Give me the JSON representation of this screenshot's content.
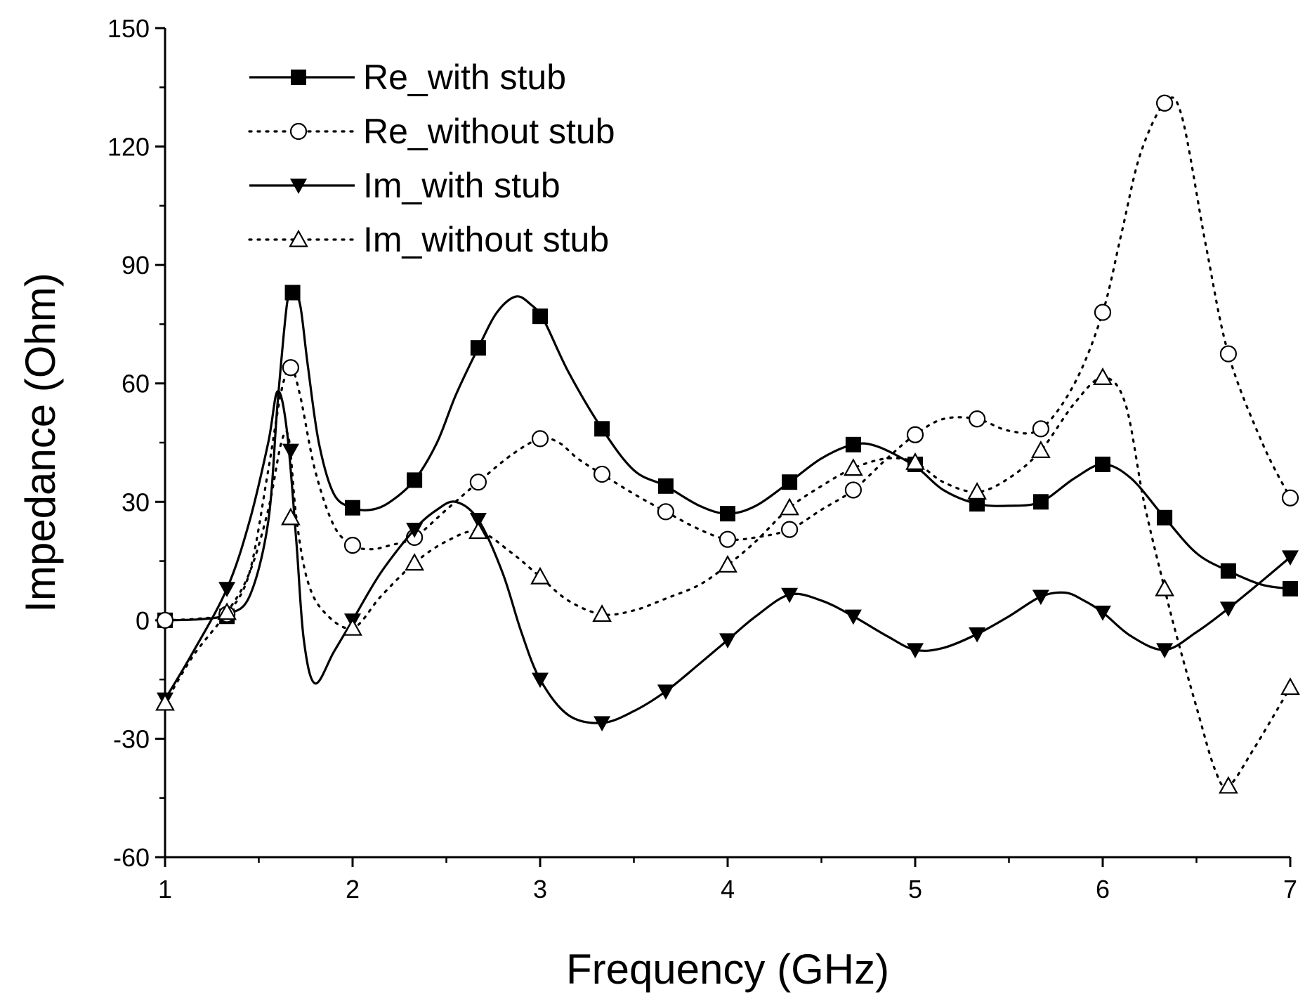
{
  "chart_data": {
    "type": "line",
    "title": "",
    "xlabel": "Frequency (GHz)",
    "ylabel": "Impedance (Ohm)",
    "xlim": [
      1,
      7
    ],
    "ylim": [
      -60,
      150
    ],
    "xticks": [
      1,
      2,
      3,
      4,
      5,
      6,
      7
    ],
    "yticks": [
      -60,
      -30,
      0,
      30,
      60,
      90,
      120,
      150
    ],
    "x_minor_step": 0.5,
    "y_minor_step": 15,
    "grid": false,
    "legend_position": "top-left",
    "colors": {
      "line": "#000000",
      "background": "#ffffff"
    },
    "series": [
      {
        "name": "Re_with stub",
        "style": "solid",
        "marker": "square-filled",
        "marker_name": "square-filled-marker",
        "curve": [
          [
            1.0,
            0
          ],
          [
            1.2,
            0.3
          ],
          [
            1.33,
            1.5
          ],
          [
            1.45,
            6
          ],
          [
            1.55,
            25
          ],
          [
            1.6,
            55
          ],
          [
            1.65,
            80
          ],
          [
            1.68,
            83
          ],
          [
            1.72,
            80
          ],
          [
            1.76,
            65
          ],
          [
            1.82,
            45
          ],
          [
            1.9,
            32
          ],
          [
            2.0,
            28.5
          ],
          [
            2.1,
            28
          ],
          [
            2.2,
            30
          ],
          [
            2.33,
            35.5
          ],
          [
            2.45,
            45
          ],
          [
            2.55,
            57
          ],
          [
            2.67,
            69
          ],
          [
            2.77,
            78
          ],
          [
            2.87,
            82
          ],
          [
            2.95,
            80
          ],
          [
            3.02,
            76
          ],
          [
            3.15,
            63
          ],
          [
            3.33,
            48.5
          ],
          [
            3.5,
            38
          ],
          [
            3.67,
            34
          ],
          [
            3.85,
            29
          ],
          [
            4.0,
            27
          ],
          [
            4.15,
            29
          ],
          [
            4.33,
            35
          ],
          [
            4.5,
            41
          ],
          [
            4.67,
            44.5
          ],
          [
            4.8,
            44
          ],
          [
            5.0,
            39
          ],
          [
            5.15,
            33
          ],
          [
            5.33,
            29.5
          ],
          [
            5.5,
            29
          ],
          [
            5.67,
            30
          ],
          [
            5.85,
            36
          ],
          [
            6.0,
            39.5
          ],
          [
            6.15,
            36
          ],
          [
            6.33,
            26
          ],
          [
            6.5,
            17
          ],
          [
            6.67,
            12.5
          ],
          [
            6.85,
            9
          ],
          [
            7.0,
            8
          ]
        ],
        "markers": [
          [
            1.0,
            0
          ],
          [
            1.33,
            1
          ],
          [
            1.68,
            83
          ],
          [
            2.0,
            28.5
          ],
          [
            2.33,
            35.5
          ],
          [
            2.67,
            69
          ],
          [
            3.0,
            77
          ],
          [
            3.33,
            48.5
          ],
          [
            3.67,
            34
          ],
          [
            4.0,
            27
          ],
          [
            4.33,
            35
          ],
          [
            4.67,
            44.5
          ],
          [
            5.0,
            39.5
          ],
          [
            5.33,
            29.5
          ],
          [
            5.67,
            30
          ],
          [
            6.0,
            39.5
          ],
          [
            6.33,
            26
          ],
          [
            6.67,
            12.5
          ],
          [
            7.0,
            8
          ]
        ]
      },
      {
        "name": "Re_without stub",
        "style": "dotted",
        "marker": "circle-open",
        "marker_name": "circle-open-marker",
        "curve": [
          [
            1.0,
            0
          ],
          [
            1.2,
            0.5
          ],
          [
            1.33,
            2
          ],
          [
            1.45,
            12
          ],
          [
            1.55,
            38
          ],
          [
            1.62,
            58
          ],
          [
            1.67,
            64
          ],
          [
            1.72,
            57
          ],
          [
            1.8,
            38
          ],
          [
            1.9,
            24
          ],
          [
            2.0,
            19
          ],
          [
            2.1,
            18
          ],
          [
            2.2,
            19
          ],
          [
            2.33,
            21
          ],
          [
            2.5,
            28
          ],
          [
            2.67,
            35
          ],
          [
            2.85,
            42
          ],
          [
            3.0,
            46
          ],
          [
            3.1,
            45
          ],
          [
            3.2,
            41
          ],
          [
            3.33,
            37
          ],
          [
            3.5,
            32
          ],
          [
            3.67,
            27.5
          ],
          [
            3.85,
            23
          ],
          [
            4.0,
            20.5
          ],
          [
            4.15,
            21
          ],
          [
            4.33,
            23
          ],
          [
            4.5,
            28
          ],
          [
            4.67,
            33
          ],
          [
            4.85,
            41
          ],
          [
            5.0,
            47
          ],
          [
            5.15,
            51
          ],
          [
            5.33,
            51
          ],
          [
            5.5,
            48
          ],
          [
            5.67,
            48.5
          ],
          [
            5.85,
            60
          ],
          [
            6.0,
            78
          ],
          [
            6.1,
            98
          ],
          [
            6.2,
            118
          ],
          [
            6.33,
            131
          ],
          [
            6.42,
            128
          ],
          [
            6.55,
            95
          ],
          [
            6.67,
            67.5
          ],
          [
            6.85,
            45
          ],
          [
            7.0,
            31
          ]
        ],
        "markers": [
          [
            1.0,
            0
          ],
          [
            1.33,
            1.5
          ],
          [
            1.67,
            64
          ],
          [
            2.0,
            19
          ],
          [
            2.33,
            21
          ],
          [
            2.67,
            35
          ],
          [
            3.0,
            46
          ],
          [
            3.33,
            37
          ],
          [
            3.67,
            27.5
          ],
          [
            4.0,
            20.5
          ],
          [
            4.33,
            23
          ],
          [
            4.67,
            33
          ],
          [
            5.0,
            47
          ],
          [
            5.33,
            51
          ],
          [
            5.67,
            48.5
          ],
          [
            6.0,
            78
          ],
          [
            6.33,
            131
          ],
          [
            6.67,
            67.5
          ],
          [
            7.0,
            31
          ]
        ]
      },
      {
        "name": "Im_with stub",
        "style": "solid",
        "marker": "triangle-down-filled",
        "marker_name": "triangle-down-filled-marker",
        "curve": [
          [
            1.0,
            -20
          ],
          [
            1.15,
            -8
          ],
          [
            1.33,
            8
          ],
          [
            1.45,
            25
          ],
          [
            1.55,
            45
          ],
          [
            1.6,
            58
          ],
          [
            1.65,
            48
          ],
          [
            1.7,
            20
          ],
          [
            1.74,
            -5
          ],
          [
            1.8,
            -16
          ],
          [
            1.9,
            -8
          ],
          [
            2.0,
            0
          ],
          [
            2.15,
            12
          ],
          [
            2.33,
            23
          ],
          [
            2.45,
            28
          ],
          [
            2.55,
            30
          ],
          [
            2.67,
            25.5
          ],
          [
            2.8,
            12
          ],
          [
            2.9,
            -3
          ],
          [
            3.0,
            -15
          ],
          [
            3.15,
            -24
          ],
          [
            3.33,
            -26
          ],
          [
            3.5,
            -23
          ],
          [
            3.67,
            -18
          ],
          [
            3.85,
            -11
          ],
          [
            4.0,
            -5
          ],
          [
            4.15,
            1
          ],
          [
            4.33,
            6.5
          ],
          [
            4.5,
            5
          ],
          [
            4.67,
            1
          ],
          [
            4.85,
            -4
          ],
          [
            5.0,
            -7.5
          ],
          [
            5.15,
            -7
          ],
          [
            5.33,
            -3.5
          ],
          [
            5.5,
            1
          ],
          [
            5.67,
            6
          ],
          [
            5.8,
            7
          ],
          [
            5.9,
            5
          ],
          [
            6.0,
            2
          ],
          [
            6.15,
            -4
          ],
          [
            6.33,
            -7.5
          ],
          [
            6.5,
            -3
          ],
          [
            6.67,
            3
          ],
          [
            6.85,
            10
          ],
          [
            7.0,
            16
          ]
        ],
        "markers": [
          [
            1.0,
            -20
          ],
          [
            1.33,
            8
          ],
          [
            1.67,
            43
          ],
          [
            2.0,
            0
          ],
          [
            2.33,
            23
          ],
          [
            2.67,
            25.5
          ],
          [
            3.0,
            -15
          ],
          [
            3.33,
            -26
          ],
          [
            3.67,
            -18
          ],
          [
            4.0,
            -5
          ],
          [
            4.33,
            6.5
          ],
          [
            4.67,
            1
          ],
          [
            5.0,
            -7.5
          ],
          [
            5.33,
            -3.5
          ],
          [
            5.67,
            6
          ],
          [
            6.0,
            2
          ],
          [
            6.33,
            -7.5
          ],
          [
            6.67,
            3
          ],
          [
            7.0,
            16
          ]
        ]
      },
      {
        "name": "Im_without stub",
        "style": "dotted",
        "marker": "triangle-up-open",
        "marker_name": "triangle-up-open-marker",
        "curve": [
          [
            1.0,
            -21
          ],
          [
            1.15,
            -9
          ],
          [
            1.33,
            2
          ],
          [
            1.45,
            12
          ],
          [
            1.55,
            28
          ],
          [
            1.62,
            45
          ],
          [
            1.66,
            46
          ],
          [
            1.7,
            26
          ],
          [
            1.76,
            10
          ],
          [
            1.85,
            2
          ],
          [
            2.0,
            -2
          ],
          [
            2.15,
            6
          ],
          [
            2.33,
            14.5
          ],
          [
            2.5,
            20
          ],
          [
            2.67,
            22.5
          ],
          [
            2.85,
            17
          ],
          [
            3.0,
            11
          ],
          [
            3.15,
            5
          ],
          [
            3.33,
            1.5
          ],
          [
            3.5,
            2.5
          ],
          [
            3.67,
            5.5
          ],
          [
            3.85,
            9
          ],
          [
            4.0,
            14
          ],
          [
            4.15,
            20
          ],
          [
            4.33,
            28.5
          ],
          [
            4.5,
            34
          ],
          [
            4.67,
            38.5
          ],
          [
            4.85,
            41
          ],
          [
            5.0,
            40
          ],
          [
            5.15,
            35
          ],
          [
            5.33,
            32.5
          ],
          [
            5.5,
            36
          ],
          [
            5.67,
            43
          ],
          [
            5.85,
            55
          ],
          [
            6.0,
            61.5
          ],
          [
            6.12,
            55
          ],
          [
            6.22,
            30
          ],
          [
            6.33,
            8
          ],
          [
            6.4,
            -5
          ],
          [
            6.5,
            -22
          ],
          [
            6.6,
            -38
          ],
          [
            6.67,
            -42
          ],
          [
            6.8,
            -33
          ],
          [
            7.0,
            -17
          ]
        ],
        "markers": [
          [
            1.0,
            -21
          ],
          [
            1.33,
            2
          ],
          [
            1.67,
            26
          ],
          [
            2.0,
            -2
          ],
          [
            2.33,
            14.5
          ],
          [
            2.67,
            22.5
          ],
          [
            3.0,
            11
          ],
          [
            3.33,
            1.5
          ],
          [
            4.0,
            14
          ],
          [
            4.33,
            28.5
          ],
          [
            4.67,
            38.5
          ],
          [
            5.0,
            40
          ],
          [
            5.33,
            32.5
          ],
          [
            5.67,
            43
          ],
          [
            6.0,
            61.5
          ],
          [
            6.33,
            8
          ],
          [
            6.67,
            -42
          ],
          [
            7.0,
            -17
          ]
        ]
      }
    ]
  }
}
